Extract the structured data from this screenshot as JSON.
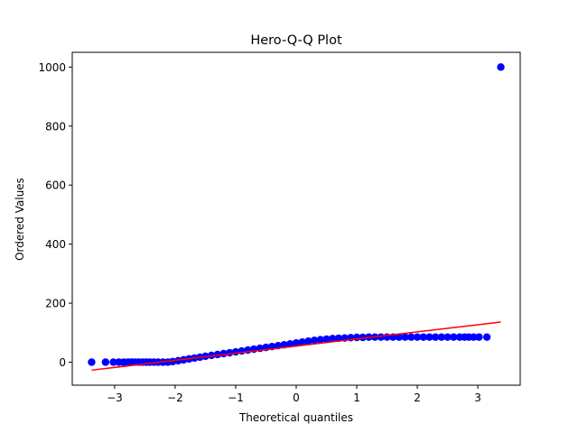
{
  "chart_data": {
    "type": "scatter",
    "title": "Hero-Q-Q Plot",
    "xlabel": "Theoretical quantiles",
    "ylabel": "Ordered Values",
    "xlim": [
      -3.7,
      3.7
    ],
    "ylim": [
      -78,
      1050
    ],
    "xticks": [
      -3,
      -2,
      -1,
      0,
      1,
      2,
      3
    ],
    "xtick_labels": [
      "−3",
      "−2",
      "−1",
      "0",
      "1",
      "2",
      "3"
    ],
    "yticks": [
      0,
      200,
      400,
      600,
      800,
      1000
    ],
    "ytick_labels": [
      "0",
      "200",
      "400",
      "600",
      "800",
      "1000"
    ],
    "grid": false,
    "legend": "none",
    "series": [
      {
        "kind": "points",
        "color": "#0000ff",
        "x": [
          -3.38,
          -3.15,
          -3.02,
          -2.93,
          -2.85,
          -2.78,
          -2.72,
          -2.66,
          -2.6,
          -2.54,
          -2.48,
          -2.42,
          -2.35,
          -2.28,
          -2.2,
          -2.12,
          -2.04,
          -1.95,
          -1.86,
          -1.77,
          -1.68,
          -1.59,
          -1.5,
          -1.4,
          -1.3,
          -1.2,
          -1.1,
          -1.0,
          -0.9,
          -0.8,
          -0.7,
          -0.6,
          -0.5,
          -0.4,
          -0.3,
          -0.2,
          -0.1,
          0.0,
          0.1,
          0.2,
          0.3,
          0.4,
          0.5,
          0.6,
          0.7,
          0.8,
          0.9,
          1.0,
          1.1,
          1.2,
          1.3,
          1.4,
          1.5,
          1.6,
          1.7,
          1.8,
          1.9,
          2.0,
          2.1,
          2.2,
          2.3,
          2.4,
          2.5,
          2.6,
          2.7,
          2.78,
          2.85,
          2.93,
          3.02,
          3.15,
          3.38
        ],
        "y": [
          0,
          0,
          0,
          0,
          0,
          0,
          0,
          0,
          0,
          0,
          0,
          0,
          0,
          0,
          0,
          0,
          2,
          5,
          8,
          11,
          14,
          17,
          20,
          23,
          26,
          29,
          32,
          35,
          38,
          41,
          44,
          47,
          50,
          53,
          56,
          59,
          62,
          65,
          68,
          71,
          74,
          76,
          78,
          80,
          81,
          82,
          83,
          84,
          84,
          85,
          85,
          85,
          85,
          85,
          85,
          85,
          85,
          85,
          85,
          85,
          85,
          85,
          85,
          85,
          85,
          85,
          85,
          85,
          85,
          85,
          1000
        ]
      },
      {
        "kind": "line",
        "color": "#ff0000",
        "x": [
          -3.38,
          3.38
        ],
        "y": [
          -27,
          136
        ]
      }
    ]
  }
}
